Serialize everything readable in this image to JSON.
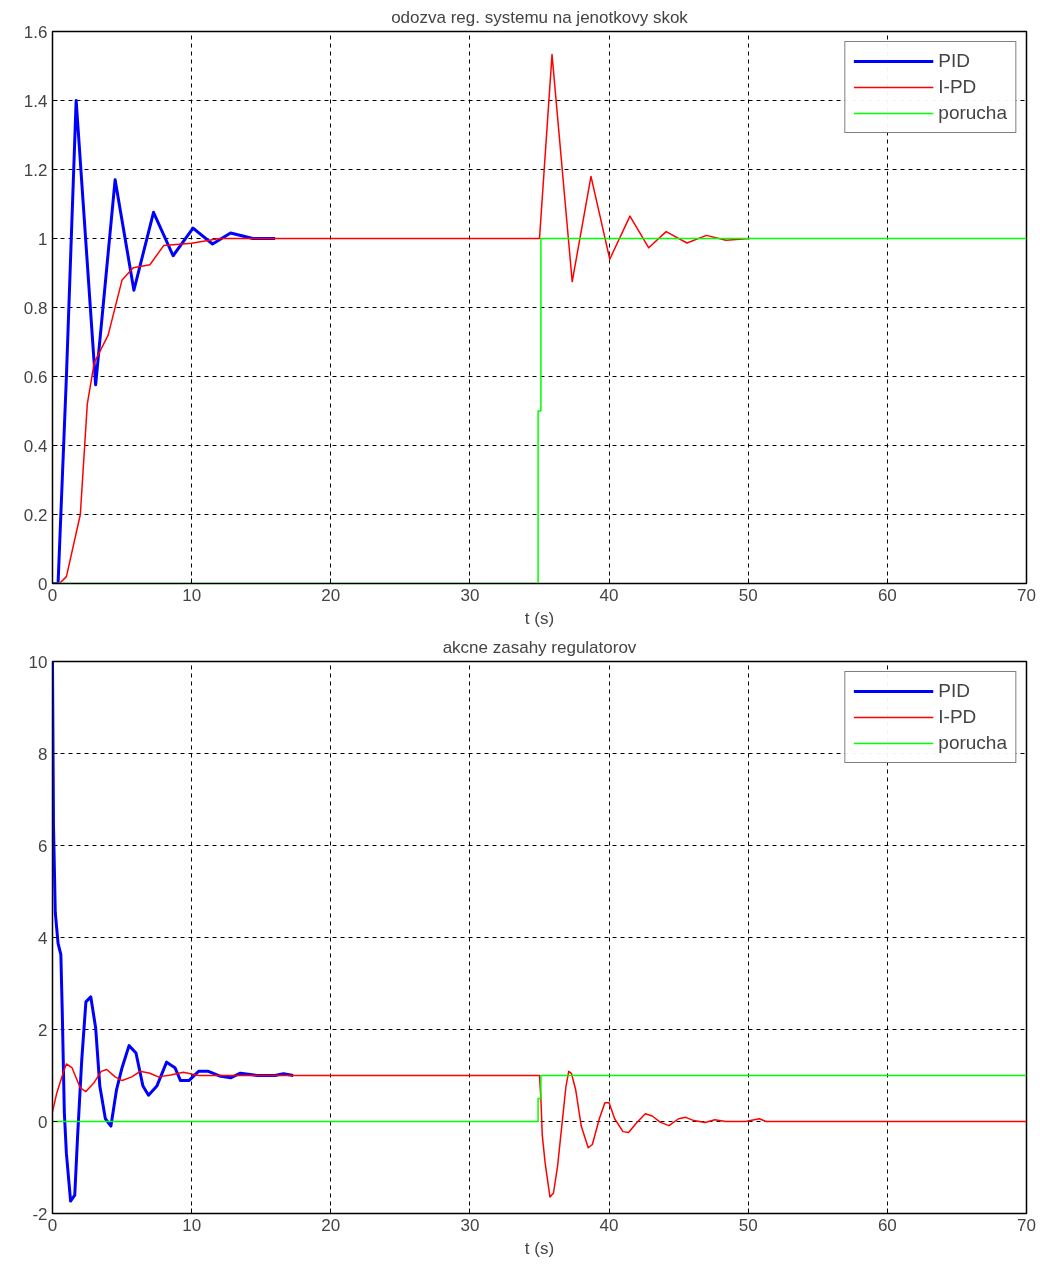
{
  "chart_data": [
    {
      "type": "line",
      "title": "odozva reg. systemu na jenotkovy skok",
      "xlabel": "t (s)",
      "xlim": [
        0,
        70
      ],
      "xticks": [
        0,
        10,
        20,
        30,
        40,
        50,
        60,
        70
      ],
      "ylim": [
        0,
        1.6
      ],
      "yticks": [
        0,
        0.2,
        0.4,
        0.6,
        0.8,
        1,
        1.2,
        1.4,
        1.6
      ],
      "grid": true,
      "legend": "top right",
      "series": [
        {
          "name": "PID",
          "color": "#0000ff",
          "x": [
            0,
            0.4,
            1.0,
            1.7,
            3.1,
            4.5,
            5.85,
            7.26,
            8.67,
            10.1,
            11.5,
            12.8,
            14.4,
            16.0
          ],
          "values": [
            0,
            0,
            0.6,
            1.4,
            0.576,
            1.17,
            0.85,
            1.076,
            0.95,
            1.03,
            0.984,
            1.016,
            1.0,
            1.0
          ]
        },
        {
          "name": "I-PD",
          "color": "#ff0000",
          "x": [
            0,
            0.5,
            1.0,
            2.0,
            2.5,
            3.0,
            4.0,
            5.0,
            5.8,
            7.0,
            8.0,
            10.0,
            12.0,
            35.0,
            35.9,
            37.35,
            38.7,
            40.05,
            41.5,
            42.85,
            44.1,
            45.6,
            47.0,
            48.4,
            50.1
          ],
          "values": [
            0,
            0,
            0.02,
            0.2,
            0.52,
            0.64,
            0.72,
            0.88,
            0.915,
            0.924,
            0.98,
            0.986,
            1.0,
            1.0,
            1.533,
            0.875,
            1.18,
            0.94,
            1.065,
            0.973,
            1.02,
            0.987,
            1.009,
            0.995,
            1.0
          ]
        },
        {
          "name": "porucha",
          "color": "#00ff00",
          "x": [
            0,
            34.9,
            34.9,
            35.1,
            35.1,
            70
          ],
          "values": [
            0,
            0,
            0.5,
            0.5,
            1,
            1
          ]
        }
      ]
    },
    {
      "type": "line",
      "title": "akcne zasahy regulatorov",
      "xlabel": "t (s)",
      "xlim": [
        0,
        70
      ],
      "xticks": [
        0,
        10,
        20,
        30,
        40,
        50,
        60,
        70
      ],
      "ylim": [
        -2,
        10
      ],
      "yticks": [
        -2,
        0,
        2,
        4,
        6,
        8,
        10
      ],
      "grid": true,
      "legend": "top right",
      "series": [
        {
          "name": "PID",
          "color": "#0000ff",
          "x": [
            0,
            0.07,
            0.2,
            0.4,
            0.6,
            0.7,
            0.85,
            1.0,
            1.3,
            1.6,
            1.8,
            2.1,
            2.4,
            2.75,
            3.1,
            3.4,
            3.8,
            4.2,
            4.6,
            5.0,
            5.5,
            6.0,
            6.5,
            6.9,
            7.5,
            8.2,
            8.8,
            9.2,
            9.8,
            10.5,
            11.2,
            12.0,
            12.8,
            13.5,
            14.7,
            16.0,
            16.6,
            17.3
          ],
          "values": [
            10,
            6.45,
            4.54,
            3.87,
            3.63,
            2.4,
            0.2,
            -0.7,
            -1.73,
            -1.6,
            -0.34,
            1.33,
            2.6,
            2.71,
            2.04,
            0.77,
            0.06,
            -0.1,
            0.69,
            1.17,
            1.65,
            1.49,
            0.77,
            0.57,
            0.77,
            1.29,
            1.17,
            0.89,
            0.89,
            1.09,
            1.09,
            0.99,
            0.95,
            1.05,
            1.0,
            1.0,
            1.04,
            1.0
          ]
        },
        {
          "name": "I-PD",
          "color": "#ff0000",
          "x": [
            0,
            0.3,
            0.8,
            1.0,
            1.4,
            2.0,
            2.4,
            3.0,
            3.5,
            3.9,
            4.5,
            5.0,
            5.7,
            6.3,
            7.0,
            7.6,
            8.5,
            9.4,
            10.5,
            35.0,
            35.1,
            35.2,
            35.4,
            35.6,
            35.75,
            36.0,
            36.3,
            36.6,
            36.9,
            37.1,
            37.3,
            37.6,
            38.0,
            38.5,
            38.8,
            39.3,
            39.7,
            40.0,
            40.4,
            41.0,
            41.4,
            42.0,
            42.6,
            43.1,
            43.7,
            44.3,
            45.0,
            45.5,
            46.1,
            46.9,
            47.6,
            48.4,
            49.8,
            50.8,
            51.3,
            70
          ],
          "values": [
            0.21,
            0.61,
            1.09,
            1.25,
            1.17,
            0.73,
            0.65,
            0.85,
            1.09,
            1.13,
            0.97,
            0.89,
            0.97,
            1.09,
            1.05,
            0.97,
            1.01,
            1.07,
            1.0,
            1.0,
            0.49,
            -0.3,
            -0.89,
            -1.32,
            -1.64,
            -1.56,
            -0.97,
            -0.1,
            0.76,
            1.09,
            1.04,
            0.69,
            -0.1,
            -0.57,
            -0.5,
            0.06,
            0.41,
            0.41,
            0.06,
            -0.22,
            -0.24,
            -0.02,
            0.17,
            0.12,
            -0.02,
            -0.09,
            0.06,
            0.09,
            0.02,
            -0.02,
            0.04,
            0,
            0,
            0.06,
            0,
            0
          ]
        },
        {
          "name": "porucha",
          "color": "#00ff00",
          "x": [
            0,
            34.9,
            34.9,
            35.1,
            35.1,
            70
          ],
          "values": [
            0,
            0,
            0.5,
            0.5,
            1,
            1
          ]
        }
      ]
    }
  ]
}
